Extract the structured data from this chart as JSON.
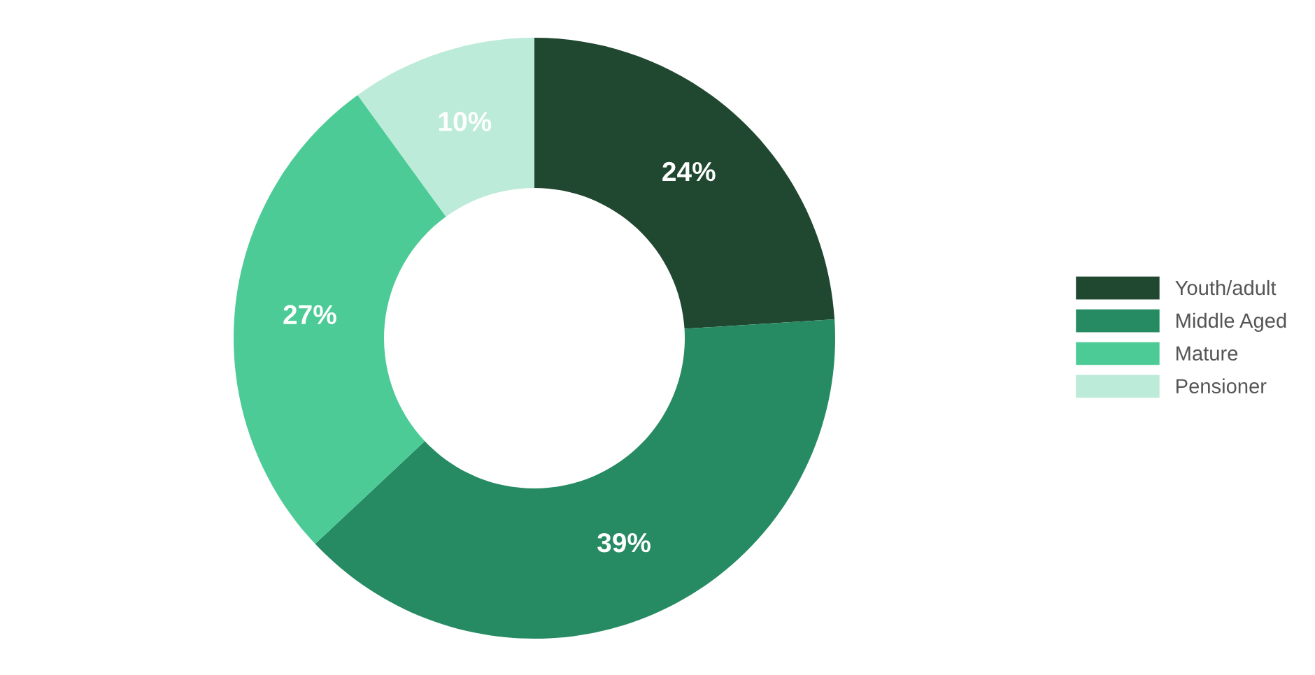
{
  "chart_data": {
    "type": "donut",
    "categories": [
      "Youth/adult",
      "Middle Aged",
      "Mature",
      "Pensioner"
    ],
    "values": [
      24,
      39,
      27,
      10
    ],
    "colors": [
      "#20472f",
      "#268b63",
      "#4ccb96",
      "#bcebd9"
    ],
    "value_labels": [
      "24%",
      "39%",
      "27%",
      "10%"
    ],
    "legend": "right"
  }
}
